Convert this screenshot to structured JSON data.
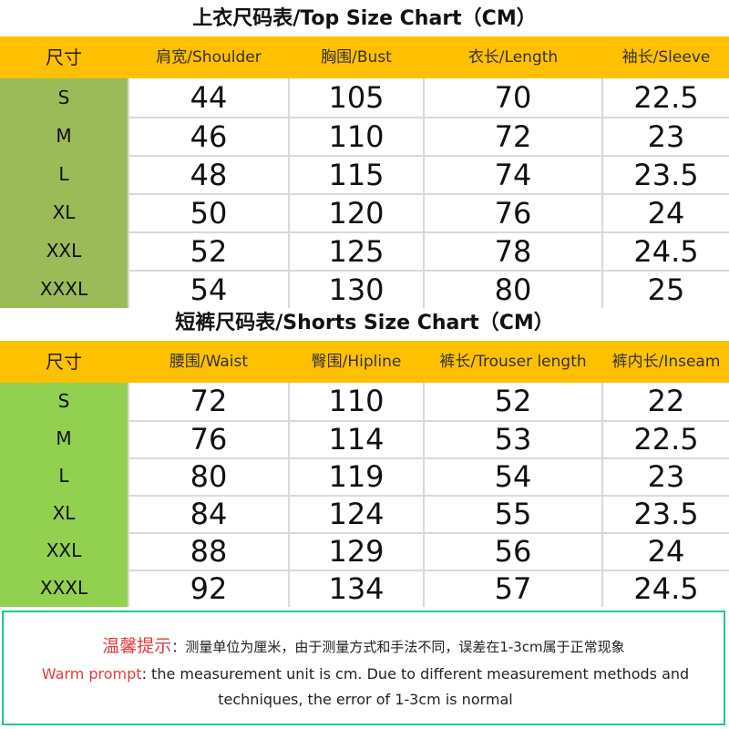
{
  "top": {
    "title": "上衣尺码表/Top Size Chart（CM）",
    "headers": [
      "尺寸",
      "肩宽/Shoulder",
      "胸围/Bust",
      "衣长/Length",
      "袖长/Sleeve"
    ],
    "rows": [
      [
        "S",
        "44",
        "105",
        "70",
        "22.5"
      ],
      [
        "M",
        "46",
        "110",
        "72",
        "23"
      ],
      [
        "L",
        "48",
        "115",
        "74",
        "23.5"
      ],
      [
        "XL",
        "50",
        "120",
        "76",
        "24"
      ],
      [
        "XXL",
        "52",
        "125",
        "78",
        "24.5"
      ],
      [
        "XXXL",
        "54",
        "130",
        "80",
        "25"
      ]
    ],
    "sidebar_color": "#9bbb59"
  },
  "shorts": {
    "title": "短裤尺码表/Shorts Size Chart（CM）",
    "headers": [
      "尺寸",
      "腰围/Waist",
      "臀围/Hipline",
      "裤长/Trouser length",
      "裤内长/Inseam"
    ],
    "rows": [
      [
        "S",
        "72",
        "110",
        "52",
        "22"
      ],
      [
        "M",
        "76",
        "114",
        "53",
        "22.5"
      ],
      [
        "L",
        "80",
        "119",
        "54",
        "23"
      ],
      [
        "XL",
        "84",
        "124",
        "55",
        "23.5"
      ],
      [
        "XXL",
        "88",
        "129",
        "56",
        "24"
      ],
      [
        "XXXL",
        "92",
        "134",
        "57",
        "24.5"
      ]
    ],
    "sidebar_color": "#92d050"
  },
  "header_color": "#ffc000",
  "notice": {
    "label_cn": "温馨提示",
    "text_cn": "：测量单位为厘米，由于测量方式和手法不同，误差在1-3cm属于正常现象",
    "label_en": "Warm prompt",
    "text_en": ": the measurement unit is cm. Due to different measurement methods and techniques, the error of 1-3cm is normal",
    "border_color": "#1fc98c"
  }
}
